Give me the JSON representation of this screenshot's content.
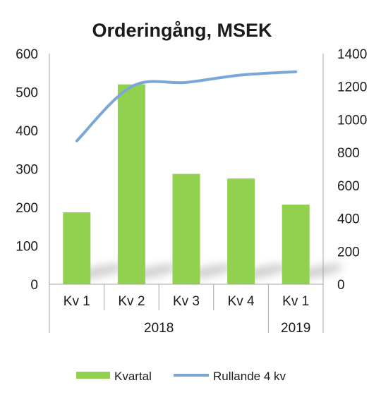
{
  "chart_data": {
    "type": "bar",
    "title": "Orderingång, MSEK",
    "categories": [
      "Kv 1",
      "Kv 2",
      "Kv 3",
      "Kv 4",
      "Kv 1"
    ],
    "groups": [
      {
        "label": "2018",
        "span": [
          0,
          3
        ]
      },
      {
        "label": "2019",
        "span": [
          4,
          4
        ]
      }
    ],
    "series": [
      {
        "name": "Kvartal",
        "type": "bar",
        "axis": "left",
        "color": "#92d050",
        "values": [
          187,
          520,
          287,
          275,
          207
        ]
      },
      {
        "name": "Rullande 4 kv",
        "type": "line",
        "axis": "right",
        "color": "#7aa7d8",
        "values": [
          870,
          1200,
          1225,
          1270,
          1290
        ]
      }
    ],
    "y_left": {
      "range": [
        0,
        600
      ],
      "ticks": [
        "0",
        "100",
        "200",
        "300",
        "400",
        "500",
        "600"
      ]
    },
    "y_right": {
      "range": [
        0,
        1400
      ],
      "ticks": [
        "0",
        "200",
        "400",
        "600",
        "800",
        "1000",
        "1200",
        "1400"
      ]
    },
    "grid": false,
    "legend_position": "bottom"
  }
}
